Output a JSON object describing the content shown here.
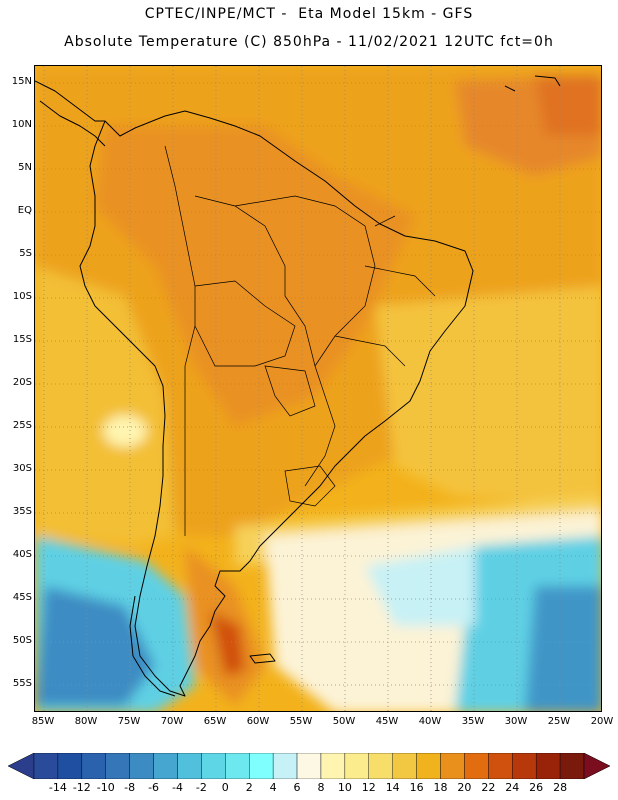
{
  "title_line1": "CPTEC/INPE/MCT -  Eta Model 15km - GFS",
  "title_line2": "Absolute Temperature (C) 850hPa - 11/02/2021 12UTC fct=0h",
  "lat_labels": [
    "15N",
    "10N",
    "5N",
    "EQ",
    "5S",
    "10S",
    "15S",
    "20S",
    "25S",
    "30S",
    "35S",
    "40S",
    "45S",
    "50S",
    "55S"
  ],
  "lon_labels": [
    "85W",
    "80W",
    "75W",
    "70W",
    "65W",
    "60W",
    "55W",
    "50W",
    "45W",
    "40W",
    "35W",
    "30W",
    "25W",
    "20W"
  ],
  "colorbar": {
    "labels": [
      "-14",
      "-12",
      "-10",
      "-8",
      "-6",
      "-4",
      "-2",
      "0",
      "2",
      "4",
      "6",
      "8",
      "10",
      "12",
      "14",
      "16",
      "18",
      "20",
      "22",
      "24",
      "26",
      "28"
    ],
    "colors": [
      "#2a4a9a",
      "#1f4fa0",
      "#2a62ad",
      "#3476b8",
      "#3c8cc3",
      "#47a6d0",
      "#50c0dc",
      "#5fd6e6",
      "#6ee8ef",
      "#80ffff",
      "#c6f2f7",
      "#fdf8e3",
      "#fff5b0",
      "#fbec8d",
      "#f7de6a",
      "#f2c843",
      "#f0b21d",
      "#e9901c",
      "#e26d11",
      "#d0500d",
      "#b7380b",
      "#982309",
      "#7a1a0d"
    ],
    "left_arrow_color": "#2b3e8c",
    "right_arrow_color": "#7a0d1e"
  },
  "colors": {
    "ocean_warm": "#f3b21c",
    "ocean_mild": "#f6c63f",
    "land_hot": "#e99123",
    "cold_south": "#5fd0e4"
  }
}
